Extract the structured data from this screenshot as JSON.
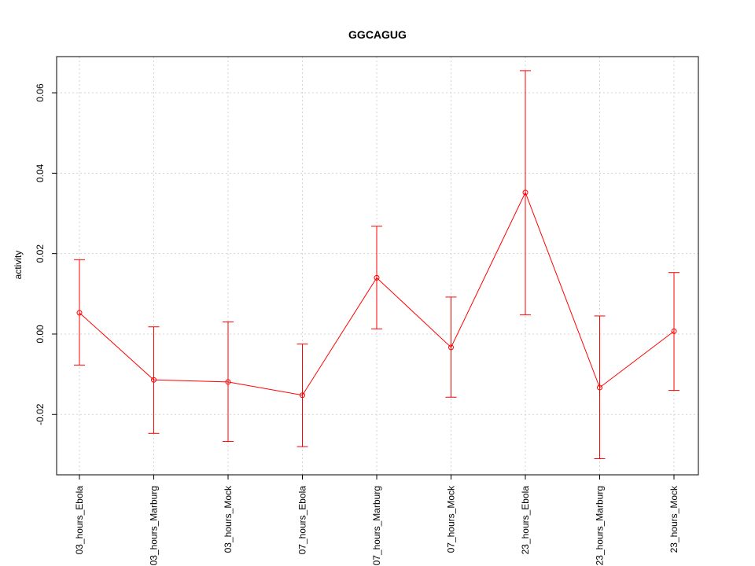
{
  "chart_data": {
    "type": "line",
    "title": "GGCAGUG",
    "xlabel": "",
    "ylabel": "activity",
    "categories": [
      "03_hours_Ebola",
      "03_hours_Marburg",
      "03_hours_Mock",
      "07_hours_Ebola",
      "07_hours_Marburg",
      "07_hours_Mock",
      "23_hours_Ebola",
      "23_hours_Marburg",
      "23_hours_Mock"
    ],
    "series": [
      {
        "values": [
          0.0053,
          -0.0114,
          -0.0119,
          -0.0152,
          0.014,
          -0.0033,
          0.0352,
          -0.0133,
          0.0007
        ],
        "error_low": [
          -0.0077,
          -0.0247,
          -0.0267,
          -0.028,
          0.0013,
          -0.0157,
          0.0048,
          -0.031,
          -0.014
        ],
        "error_high": [
          0.0185,
          0.0018,
          0.003,
          -0.0025,
          0.0268,
          0.0092,
          0.0655,
          0.0045,
          0.0153
        ]
      }
    ],
    "ylim": [
      -0.035,
      0.069
    ],
    "yticks": [
      -0.02,
      0.0,
      0.02,
      0.04,
      0.06
    ],
    "ytick_labels": [
      "-0.02",
      "0.00",
      "0.02",
      "0.04",
      "0.06"
    ],
    "grid": true,
    "colors": {
      "series": "#ff0000",
      "grid": "#d3d3d3",
      "axis": "#000000"
    }
  }
}
